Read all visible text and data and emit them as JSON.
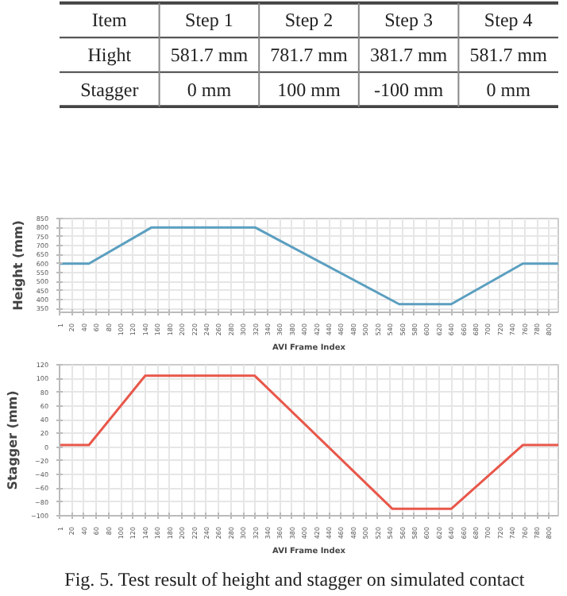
{
  "chart_data": [
    {
      "type": "other",
      "categories": [
        "Item",
        "Step 1",
        "Step 2",
        "Step 3",
        "Step 4"
      ],
      "y_categories": [
        "Hight",
        "Stagger"
      ],
      "cell_labels": [
        [
          "581.7 mm",
          "781.7 mm",
          "381.7 mm",
          "581.7 mm"
        ],
        [
          "0 mm",
          "100 mm",
          "-100 mm",
          "0 mm"
        ]
      ]
    },
    {
      "type": "line",
      "xlabel": "AVI Frame Index",
      "ylabel": "Height (mm)",
      "xlim": [
        0,
        815
      ],
      "ylim": [
        330,
        850
      ],
      "xticks": [
        1,
        20,
        40,
        60,
        80,
        100,
        120,
        140,
        160,
        180,
        200,
        220,
        240,
        260,
        280,
        300,
        320,
        340,
        360,
        380,
        400,
        420,
        440,
        460,
        480,
        500,
        520,
        540,
        560,
        580,
        600,
        620,
        640,
        660,
        680,
        700,
        720,
        740,
        760,
        780,
        800
      ],
      "yticks": [
        350,
        400,
        450,
        500,
        550,
        600,
        650,
        700,
        750,
        800,
        850
      ],
      "grid": true,
      "series": [
        {
          "color": "#5b9fc0",
          "x": [
            1,
            48,
            150,
            320,
            555,
            640,
            757,
            815
          ],
          "values": [
            600,
            600,
            800,
            800,
            375,
            375,
            600,
            600
          ]
        }
      ]
    },
    {
      "type": "line",
      "xlabel": "AVI Frame Index",
      "ylabel": "Stagger (mm)",
      "xlim": [
        0,
        815
      ],
      "ylim": [
        -100,
        120
      ],
      "xticks": [
        1,
        20,
        40,
        60,
        80,
        100,
        120,
        140,
        160,
        180,
        200,
        220,
        240,
        260,
        280,
        300,
        320,
        340,
        360,
        380,
        400,
        420,
        440,
        460,
        480,
        500,
        520,
        540,
        560,
        580,
        600,
        620,
        640,
        660,
        680,
        700,
        720,
        740,
        760,
        780,
        800
      ],
      "yticks": [
        -100,
        -80,
        -60,
        -40,
        -20,
        0,
        20,
        40,
        60,
        80,
        100,
        120
      ],
      "grid": true,
      "series": [
        {
          "color": "#e8574a",
          "x": [
            1,
            48,
            140,
            319,
            544,
            640,
            757,
            815
          ],
          "values": [
            3,
            3,
            104,
            104,
            -90,
            -90,
            3,
            3
          ]
        }
      ]
    },
    {
      "type": "other",
      "annotations": [
        "Fig. 5. Test result of height and stagger on simulated contact"
      ]
    }
  ]
}
